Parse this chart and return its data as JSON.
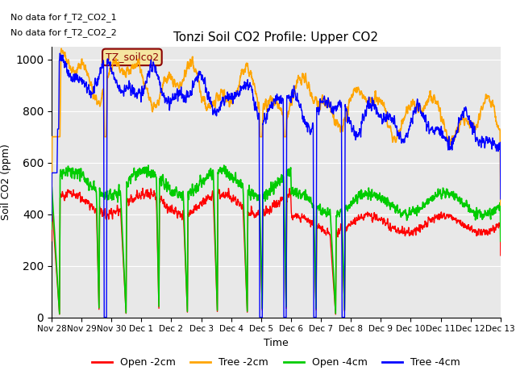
{
  "title": "Tonzi Soil CO2 Profile: Upper CO2",
  "ylabel": "Soil CO2 (ppm)",
  "xlabel": "Time",
  "annotations": [
    "No data for f_T2_CO2_1",
    "No data for f_T2_CO2_2"
  ],
  "legend_label": "TZ_soilco2",
  "ylim": [
    0,
    1050
  ],
  "series_colors": {
    "open_2cm": "#ff0000",
    "tree_2cm": "#ffa500",
    "open_4cm": "#00cc00",
    "tree_4cm": "#0000ff"
  },
  "legend_labels": [
    "Open -2cm",
    "Tree -2cm",
    "Open -4cm",
    "Tree -4cm"
  ],
  "tick_labels": [
    "Nov 28",
    "Nov 29",
    "Nov 30",
    "Dec 1",
    "Dec 2",
    "Dec 3",
    "Dec 4",
    "Dec 5",
    "Dec 6",
    "Dec 7",
    "Dec 8",
    "Dec 9",
    "Dec 10",
    "Dec 11",
    "Dec 12",
    "Dec 13"
  ],
  "background_color": "#e8e8e8",
  "plot_bg_color": "#e8e8e8",
  "grid_color": "#ffffff"
}
